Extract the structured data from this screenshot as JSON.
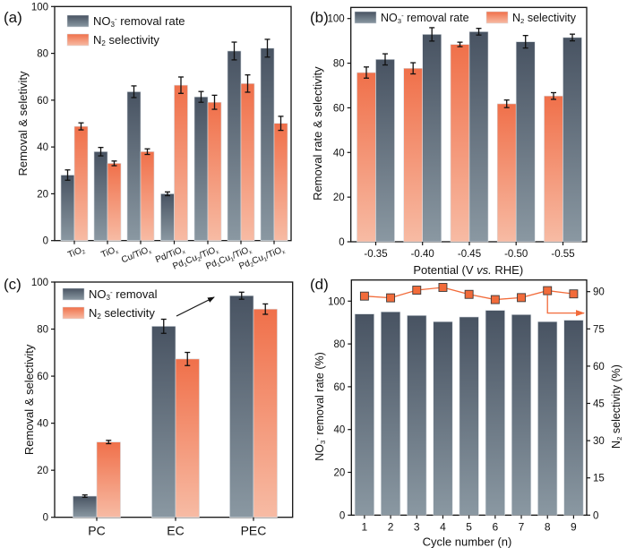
{
  "colors": {
    "gray_top": "#485362",
    "gray_bottom": "#8a98a2",
    "orange_top": "#f0704a",
    "orange_bottom": "#f7bba4",
    "axis": "#111111",
    "marker": "#f26b3a",
    "marker_edge": "#3a3a3a",
    "annotation_line": "#f26b3a"
  },
  "chart_data": [
    {
      "panel": "(a)",
      "type": "bar",
      "title": "",
      "xlabel": "",
      "ylabel": "Removal & seletivity",
      "ylim": [
        0,
        100
      ],
      "yticks": [
        0,
        20,
        40,
        60,
        80,
        100
      ],
      "legend_position": "top-left",
      "categories": [
        {
          "base": "TiO",
          "sub": "2",
          "parts": [
            [
              "TiO",
              ""
            ],
            [
              "2",
              "sub"
            ]
          ]
        },
        {
          "parts": [
            [
              "TiO",
              ""
            ],
            [
              "x",
              "sub"
            ]
          ]
        },
        {
          "parts": [
            [
              "Cu/TiO",
              ""
            ],
            [
              "x",
              "sub"
            ]
          ]
        },
        {
          "parts": [
            [
              "Pd/TiO",
              ""
            ],
            [
              "x",
              "sub"
            ]
          ]
        },
        {
          "parts": [
            [
              "Pd",
              ""
            ],
            [
              "1",
              "sub"
            ],
            [
              "Cu",
              ""
            ],
            [
              "2",
              "sub"
            ],
            [
              "/TiO",
              ""
            ],
            [
              "x",
              "sub"
            ]
          ]
        },
        {
          "parts": [
            [
              "Pd",
              ""
            ],
            [
              "1",
              "sub"
            ],
            [
              "Cu",
              ""
            ],
            [
              "1",
              "sub"
            ],
            [
              "/TiO",
              ""
            ],
            [
              "x",
              "sub"
            ]
          ]
        },
        {
          "parts": [
            [
              "Pd",
              ""
            ],
            [
              "2",
              "sub"
            ],
            [
              "Cu",
              ""
            ],
            [
              "1",
              "sub"
            ],
            [
              "/TiO",
              ""
            ],
            [
              "x",
              "sub"
            ]
          ]
        }
      ],
      "category_labels": [
        "TiO2",
        "TiOx",
        "Cu/TiOx",
        "Pd/TiOx",
        "Pd1Cu2/TiOx",
        "Pd1Cu1/TiOx",
        "Pd2Cu1/TiOx"
      ],
      "series": [
        {
          "name": "NO3- removal rate",
          "legend_parts": [
            [
              "NO",
              ""
            ],
            [
              "3",
              "sub"
            ],
            [
              "-",
              "sup"
            ],
            [
              " removal rate",
              ""
            ]
          ],
          "color": "gray",
          "values": [
            28,
            38,
            63.6,
            20,
            61.4,
            81,
            82.2
          ],
          "errors": [
            2.2,
            1.8,
            2.5,
            0.8,
            2.3,
            3.8,
            3.8
          ]
        },
        {
          "name": "N2 selectivity",
          "legend_parts": [
            [
              "N",
              ""
            ],
            [
              "2",
              "sub"
            ],
            [
              " selectivity",
              ""
            ]
          ],
          "color": "orange",
          "values": [
            48.8,
            33,
            38,
            66.4,
            59.1,
            67.1,
            50.1
          ],
          "errors": [
            1.5,
            1,
            1.2,
            3.5,
            3,
            3.7,
            3
          ]
        }
      ]
    },
    {
      "panel": "(b)",
      "type": "bar",
      "title": "",
      "xlabel": "Potential (V vs. RHE)",
      "xlabel_parts": [
        [
          "Potential (V ",
          ""
        ],
        [
          "vs.",
          "italic"
        ],
        [
          " RHE)",
          ""
        ]
      ],
      "ylabel": "Removal rate & selectivity",
      "ylim": [
        0,
        104
      ],
      "yticks": [
        0,
        20,
        40,
        60,
        80,
        100
      ],
      "legend_position": "top (horizontal)",
      "category_labels": [
        "-0.35",
        "-0.40",
        "-0.45",
        "-0.50",
        "-0.55"
      ],
      "series": [
        {
          "name": "N2 selectivity",
          "legend_parts": [
            [
              "N",
              ""
            ],
            [
              "2",
              "sub"
            ],
            [
              " selectivity",
              ""
            ]
          ],
          "color": "orange",
          "values": [
            75.8,
            77.7,
            88.4,
            61.8,
            65.3
          ],
          "errors": [
            2.5,
            2.5,
            1,
            1.7,
            1.5
          ]
        },
        {
          "name": "NO3- removal rate",
          "legend_parts": [
            [
              "NO",
              ""
            ],
            [
              "3",
              "sub"
            ],
            [
              "-",
              "sup"
            ],
            [
              " removal rate",
              ""
            ]
          ],
          "color": "gray",
          "values": [
            81.7,
            92.9,
            94.1,
            89.6,
            91.5
          ],
          "errors": [
            2.5,
            3,
            1.5,
            2.8,
            1.5
          ]
        }
      ],
      "legend_order": [
        1,
        0
      ]
    },
    {
      "panel": "(c)",
      "type": "bar",
      "title": "",
      "xlabel": "",
      "ylabel": "Removal & selectivity",
      "ylim": [
        0,
        100
      ],
      "yticks": [
        0,
        20,
        40,
        60,
        80,
        100
      ],
      "legend_position": "top-left",
      "category_labels": [
        "PC",
        "EC",
        "PEC"
      ],
      "series": [
        {
          "name": "NO3- removal",
          "legend_parts": [
            [
              "NO",
              ""
            ],
            [
              "3",
              "sub"
            ],
            [
              "-",
              "sup"
            ],
            [
              " removal",
              ""
            ]
          ],
          "color": "gray",
          "values": [
            9,
            81.2,
            94.2
          ],
          "errors": [
            0.5,
            3,
            1.5
          ]
        },
        {
          "name": "N2 selectivity",
          "legend_parts": [
            [
              "N",
              ""
            ],
            [
              "2",
              "sub"
            ],
            [
              " selectivity",
              ""
            ]
          ],
          "color": "orange",
          "values": [
            32,
            67.3,
            88.5
          ],
          "errors": [
            0.7,
            2.8,
            2.2
          ]
        }
      ],
      "annotation": "arrow from EC NO3- removal bar toward PEC NO3- removal bar"
    },
    {
      "panel": "(d)",
      "type": "bar",
      "title": "",
      "xlabel": "Cycle number (n)",
      "ylabel": "NO3- removal rate (%)",
      "ylabel_parts": [
        [
          "NO",
          ""
        ],
        [
          "3",
          "sub"
        ],
        [
          "-",
          "sup"
        ],
        [
          " removal rate (%)",
          ""
        ]
      ],
      "ylim": [
        0,
        110
      ],
      "yticks": [
        0,
        20,
        40,
        60,
        80,
        100
      ],
      "y2label": "N2 selectivity (%)",
      "y2label_parts": [
        [
          "N",
          ""
        ],
        [
          "2",
          "sub"
        ],
        [
          " selectivity (%)",
          ""
        ]
      ],
      "y2lim": [
        0,
        95.3
      ],
      "y2ticks": [
        0,
        15,
        30,
        45,
        60,
        75,
        90
      ],
      "category_labels": [
        "1",
        "2",
        "3",
        "4",
        "5",
        "6",
        "7",
        "8",
        "9"
      ],
      "series": [
        {
          "name": "NO3- removal rate",
          "type": "bar",
          "axis": "left",
          "color": "gray",
          "values": [
            94,
            95,
            93.3,
            90.4,
            92.6,
            95.7,
            93.7,
            90.4,
            91.1
          ]
        },
        {
          "name": "N2 selectivity",
          "type": "line",
          "axis": "right",
          "marker": "square",
          "color": "orange",
          "values": [
            88.2,
            87.5,
            90.6,
            91.7,
            88.9,
            86.8,
            87.6,
            90.4,
            89.1
          ]
        }
      ],
      "annotation": "arrow from N2 selectivity line pointing to right axis"
    }
  ]
}
